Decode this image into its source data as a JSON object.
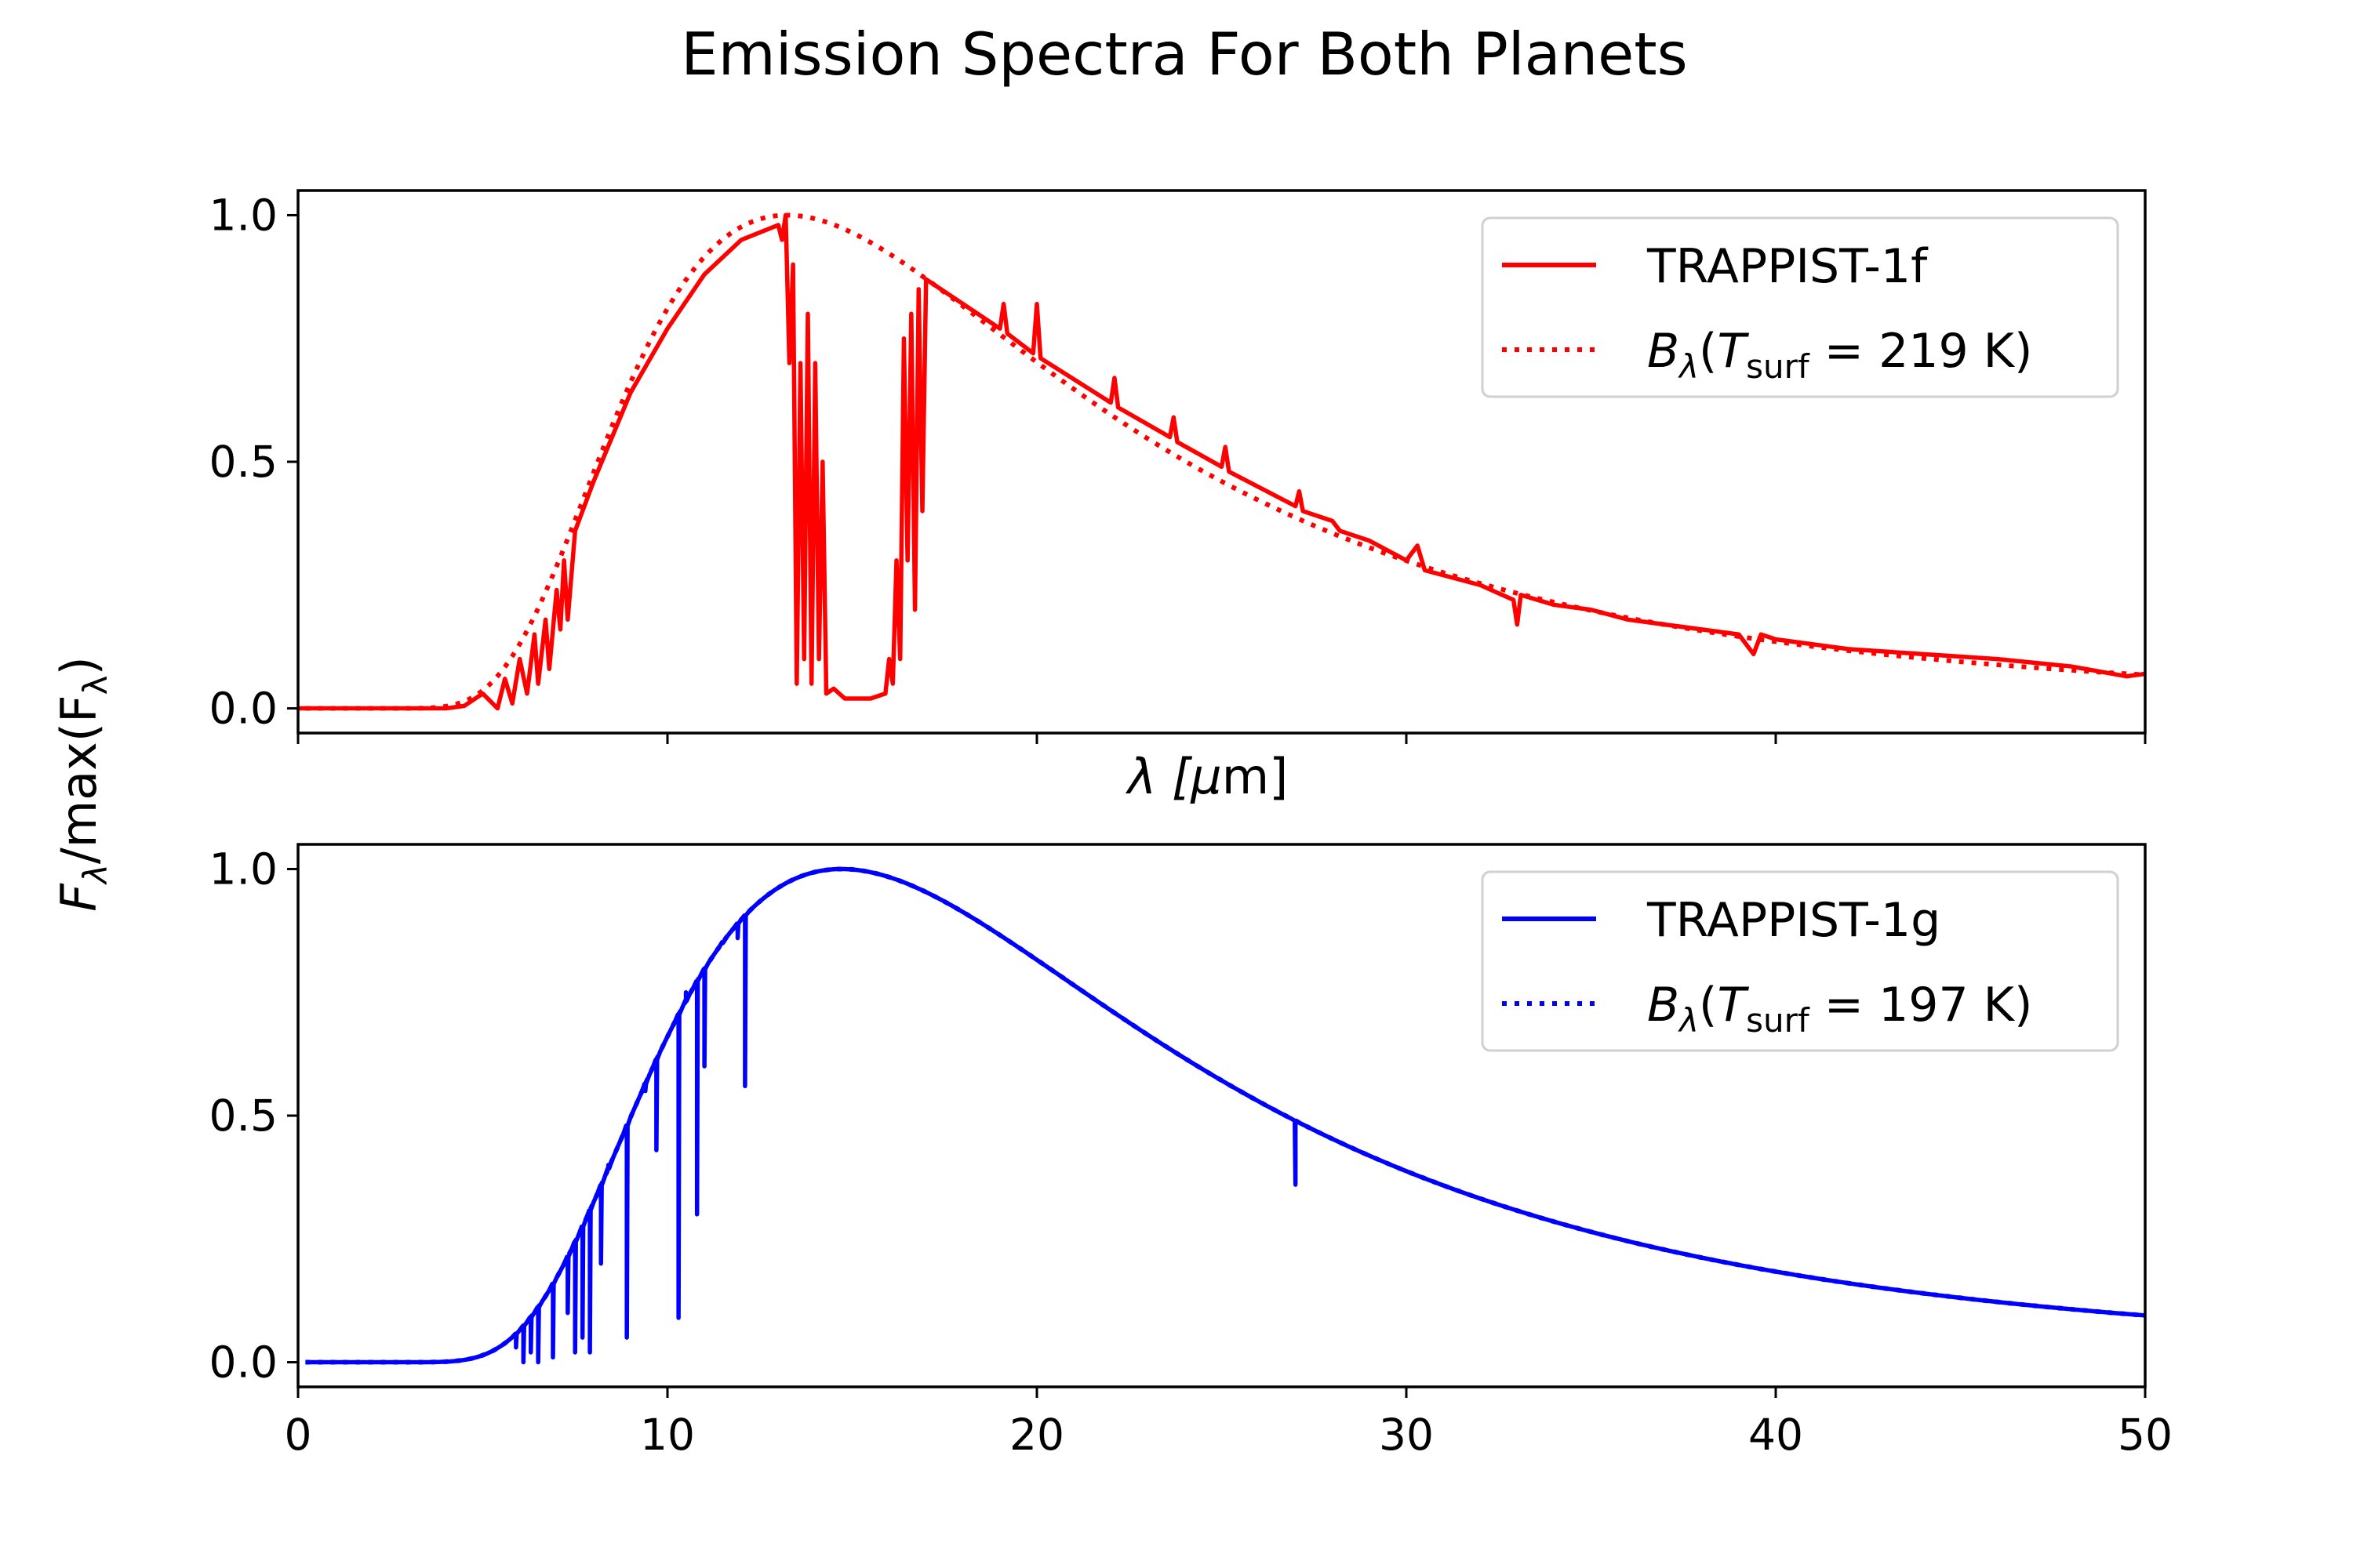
{
  "figure": {
    "title": "Emission Spectra For Both Planets",
    "ylabel_main": "F",
    "ylabel_sub": "λ",
    "ylabel_rest": "/max(F",
    "ylabel_sub2": "λ",
    "ylabel_close": ")",
    "xlabel_top_pre": "λ [",
    "xlabel_top_mu": "μ",
    "xlabel_top_post": "m]"
  },
  "chart_data": [
    {
      "type": "line",
      "panel": "top",
      "xlim": [
        0,
        50
      ],
      "ylim": [
        -0.05,
        1.05
      ],
      "yticks": [
        0.0,
        0.5,
        1.0
      ],
      "ytick_labels": [
        "0.0",
        "0.5",
        "1.0"
      ],
      "xticks": [
        0,
        10,
        20,
        30,
        40,
        50
      ],
      "show_xtick_labels": false,
      "legend_position": "top-right",
      "planck_temperature_K": 219,
      "series": [
        {
          "name": "TRAPPIST-1f",
          "style": "solid",
          "color": "#ff0000",
          "points": [
            [
              0,
              0.0
            ],
            [
              4,
              0.0
            ],
            [
              4.5,
              0.005
            ],
            [
              5.0,
              0.03
            ],
            [
              5.4,
              0.0
            ],
            [
              5.6,
              0.06
            ],
            [
              5.8,
              0.01
            ],
            [
              6.0,
              0.1
            ],
            [
              6.2,
              0.03
            ],
            [
              6.4,
              0.15
            ],
            [
              6.5,
              0.05
            ],
            [
              6.7,
              0.18
            ],
            [
              6.8,
              0.08
            ],
            [
              7.0,
              0.24
            ],
            [
              7.1,
              0.16
            ],
            [
              7.2,
              0.3
            ],
            [
              7.3,
              0.18
            ],
            [
              7.5,
              0.36
            ],
            [
              8.0,
              0.46
            ],
            [
              8.5,
              0.55
            ],
            [
              9.0,
              0.64
            ],
            [
              10.0,
              0.77
            ],
            [
              11.0,
              0.88
            ],
            [
              12.0,
              0.95
            ],
            [
              13.0,
              0.98
            ],
            [
              13.1,
              0.95
            ],
            [
              13.2,
              1.0
            ],
            [
              13.3,
              0.7
            ],
            [
              13.4,
              0.9
            ],
            [
              13.5,
              0.05
            ],
            [
              13.6,
              0.7
            ],
            [
              13.7,
              0.1
            ],
            [
              13.8,
              0.8
            ],
            [
              13.9,
              0.05
            ],
            [
              14.0,
              0.7
            ],
            [
              14.1,
              0.1
            ],
            [
              14.2,
              0.5
            ],
            [
              14.3,
              0.03
            ],
            [
              14.5,
              0.04
            ],
            [
              14.8,
              0.02
            ],
            [
              15.5,
              0.02
            ],
            [
              15.9,
              0.03
            ],
            [
              16.0,
              0.1
            ],
            [
              16.1,
              0.05
            ],
            [
              16.2,
              0.3
            ],
            [
              16.3,
              0.1
            ],
            [
              16.4,
              0.75
            ],
            [
              16.5,
              0.3
            ],
            [
              16.6,
              0.8
            ],
            [
              16.7,
              0.2
            ],
            [
              16.8,
              0.85
            ],
            [
              16.9,
              0.4
            ],
            [
              17.0,
              0.87
            ],
            [
              17.2,
              0.86
            ],
            [
              18.0,
              0.82
            ],
            [
              19.0,
              0.77
            ],
            [
              19.1,
              0.82
            ],
            [
              19.2,
              0.76
            ],
            [
              19.9,
              0.72
            ],
            [
              20.0,
              0.82
            ],
            [
              20.1,
              0.71
            ],
            [
              22.0,
              0.62
            ],
            [
              22.1,
              0.67
            ],
            [
              22.2,
              0.61
            ],
            [
              23.6,
              0.55
            ],
            [
              23.7,
              0.59
            ],
            [
              23.8,
              0.54
            ],
            [
              25.0,
              0.49
            ],
            [
              25.1,
              0.53
            ],
            [
              25.2,
              0.48
            ],
            [
              27.0,
              0.41
            ],
            [
              27.1,
              0.44
            ],
            [
              27.2,
              0.4
            ],
            [
              28.0,
              0.38
            ],
            [
              28.2,
              0.36
            ],
            [
              29.0,
              0.34
            ],
            [
              30.0,
              0.3
            ],
            [
              30.3,
              0.33
            ],
            [
              30.5,
              0.28
            ],
            [
              32.0,
              0.25
            ],
            [
              32.9,
              0.22
            ],
            [
              33.0,
              0.17
            ],
            [
              33.1,
              0.23
            ],
            [
              34.0,
              0.21
            ],
            [
              35.0,
              0.2
            ],
            [
              36.0,
              0.18
            ],
            [
              37.0,
              0.17
            ],
            [
              38.0,
              0.16
            ],
            [
              39.0,
              0.15
            ],
            [
              39.4,
              0.11
            ],
            [
              39.6,
              0.15
            ],
            [
              40.0,
              0.14
            ],
            [
              42.0,
              0.12
            ],
            [
              44.0,
              0.11
            ],
            [
              46.0,
              0.1
            ],
            [
              48.0,
              0.085
            ],
            [
              49.5,
              0.065
            ],
            [
              50.0,
              0.07
            ]
          ]
        },
        {
          "name": "B_λ(T_surf = 219 K)",
          "style": "dotted",
          "color": "#ff0000",
          "points": []
        }
      ],
      "legend": [
        {
          "type": "plain",
          "text": "TRAPPIST-1f",
          "style": "solid",
          "color": "#ff0000"
        },
        {
          "type": "planck",
          "B": "B",
          "lam": "λ",
          "paren": "(",
          "T": "T",
          "surf": "surf",
          "eq": " = 219 K)",
          "style": "dotted",
          "color": "#ff0000"
        }
      ]
    },
    {
      "type": "line",
      "panel": "bottom",
      "xlim": [
        0,
        50
      ],
      "ylim": [
        -0.05,
        1.05
      ],
      "yticks": [
        0.0,
        0.5,
        1.0
      ],
      "ytick_labels": [
        "0.0",
        "0.5",
        "1.0"
      ],
      "xticks": [
        0,
        10,
        20,
        30,
        40,
        50
      ],
      "xtick_labels": [
        "0",
        "10",
        "20",
        "30",
        "40",
        "50"
      ],
      "show_xtick_labels": true,
      "legend_position": "top-right",
      "planck_temperature_K": 197,
      "absorption_lines": [
        [
          5.9,
          0.03
        ],
        [
          6.1,
          0.0
        ],
        [
          6.3,
          0.02
        ],
        [
          6.5,
          0.0
        ],
        [
          6.9,
          0.01
        ],
        [
          7.3,
          0.1
        ],
        [
          7.5,
          0.02
        ],
        [
          7.7,
          0.05
        ],
        [
          7.9,
          0.02
        ],
        [
          8.2,
          0.2
        ],
        [
          8.4,
          0.4
        ],
        [
          8.9,
          0.05
        ],
        [
          9.4,
          0.55
        ],
        [
          9.7,
          0.43
        ],
        [
          10.3,
          0.09
        ],
        [
          10.5,
          0.75
        ],
        [
          10.8,
          0.3
        ],
        [
          11.0,
          0.6
        ],
        [
          11.5,
          0.85
        ],
        [
          11.9,
          0.86
        ],
        [
          12.1,
          0.56
        ],
        [
          27.0,
          0.36
        ]
      ],
      "series": [
        {
          "name": "TRAPPIST-1g",
          "style": "solid",
          "color": "#0000ff",
          "points": []
        },
        {
          "name": "B_λ(T_surf = 197 K)",
          "style": "dotted",
          "color": "#0000ff",
          "points": []
        }
      ],
      "legend": [
        {
          "type": "plain",
          "text": "TRAPPIST-1g",
          "style": "solid",
          "color": "#0000ff"
        },
        {
          "type": "planck",
          "B": "B",
          "lam": "λ",
          "paren": "(",
          "T": "T",
          "surf": "surf",
          "eq": " = 197 K)",
          "style": "dotted",
          "color": "#0000ff"
        }
      ]
    }
  ]
}
